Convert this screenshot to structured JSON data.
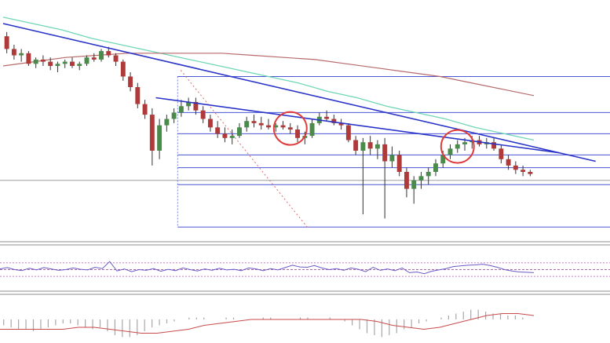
{
  "colors": {
    "background": "#ffffff",
    "bull_body": "#4a8a4a",
    "bear_body": "#b03a3a",
    "wick": "#333333",
    "trendline": "#2a35c8",
    "fib_line": "#4a56d6",
    "fib_anchor": "#5560d8",
    "ma_fast": "#6fd6b8",
    "ma_slow": "#b86a6a",
    "horizontal_level": "#8c8c8c",
    "projection": "#e06a6a",
    "highlight_circle": "#e03a3a",
    "panel_separator": "#8c8c8c",
    "rsi_line": "#6a5ac8",
    "rsi_band": "#b050b0",
    "rsi_mid": "#8a3a8a",
    "macd_hist": "#a8a8a8",
    "macd_signal": "#c84a4a"
  },
  "chart_data": [
    {
      "type": "candlestick",
      "panel": "price",
      "title": "",
      "xlabel": "",
      "ylabel": "",
      "y_range": [
        0,
        100
      ],
      "grid": false,
      "candles": [
        [
          94,
          96,
          86,
          88
        ],
        [
          88,
          90,
          83,
          85
        ],
        [
          85,
          88,
          82,
          86
        ],
        [
          86,
          87,
          80,
          81
        ],
        [
          81,
          84,
          79,
          83
        ],
        [
          83,
          85,
          80,
          82
        ],
        [
          82,
          84,
          78,
          80
        ],
        [
          80,
          82,
          77,
          81
        ],
        [
          81,
          83,
          79,
          82
        ],
        [
          82,
          84,
          79,
          80
        ],
        [
          80,
          82,
          78,
          81
        ],
        [
          81,
          85,
          80,
          84
        ],
        [
          84,
          86,
          82,
          83
        ],
        [
          83,
          88,
          82,
          87
        ],
        [
          87,
          89,
          84,
          85
        ],
        [
          85,
          86,
          80,
          82
        ],
        [
          82,
          83,
          73,
          75
        ],
        [
          75,
          77,
          68,
          70
        ],
        [
          70,
          72,
          60,
          62
        ],
        [
          62,
          64,
          55,
          57
        ],
        [
          57,
          60,
          33,
          40
        ],
        [
          40,
          55,
          36,
          52
        ],
        [
          52,
          57,
          49,
          55
        ],
        [
          55,
          60,
          53,
          58
        ],
        [
          58,
          64,
          56,
          61
        ],
        [
          61,
          65,
          59,
          63
        ],
        [
          63,
          65,
          57,
          59
        ],
        [
          59,
          61,
          53,
          55
        ],
        [
          55,
          57,
          49,
          51
        ],
        [
          51,
          54,
          46,
          48
        ],
        [
          48,
          51,
          44,
          46
        ],
        [
          46,
          50,
          43,
          47
        ],
        [
          47,
          53,
          46,
          51
        ],
        [
          51,
          56,
          49,
          54
        ],
        [
          54,
          57,
          51,
          53
        ],
        [
          53,
          56,
          50,
          52
        ],
        [
          52,
          55,
          50,
          51
        ],
        [
          51,
          53,
          49,
          52
        ],
        [
          52,
          54,
          50,
          51
        ],
        [
          51,
          53,
          48,
          50
        ],
        [
          50,
          52,
          44,
          46
        ],
        [
          46,
          49,
          43,
          47
        ],
        [
          47,
          55,
          46,
          53
        ],
        [
          53,
          58,
          52,
          56
        ],
        [
          56,
          59,
          54,
          55
        ],
        [
          55,
          57,
          52,
          53
        ],
        [
          53,
          55,
          50,
          52
        ],
        [
          52,
          53,
          44,
          45
        ],
        [
          45,
          47,
          38,
          40
        ],
        [
          40,
          46,
          10,
          44
        ],
        [
          44,
          47,
          38,
          41
        ],
        [
          41,
          45,
          36,
          43
        ],
        [
          43,
          46,
          8,
          35
        ],
        [
          35,
          42,
          32,
          38
        ],
        [
          38,
          40,
          28,
          30
        ],
        [
          30,
          32,
          18,
          22
        ],
        [
          22,
          28,
          15,
          26
        ],
        [
          26,
          30,
          22,
          28
        ],
        [
          28,
          32,
          24,
          30
        ],
        [
          30,
          36,
          28,
          34
        ],
        [
          34,
          40,
          32,
          38
        ],
        [
          38,
          43,
          36,
          41
        ],
        [
          41,
          45,
          39,
          43
        ],
        [
          43,
          46,
          40,
          44
        ],
        [
          44,
          47,
          41,
          45
        ],
        [
          45,
          47,
          42,
          43
        ],
        [
          43,
          46,
          41,
          44
        ],
        [
          44,
          46,
          40,
          41
        ],
        [
          41,
          43,
          34,
          36
        ],
        [
          36,
          38,
          31,
          33
        ],
        [
          33,
          35,
          29,
          31
        ],
        [
          31,
          33,
          28,
          30
        ],
        [
          30,
          31,
          28,
          29
        ]
      ],
      "ma_fast": [
        103,
        100,
        97,
        93,
        90,
        87,
        84,
        81,
        78,
        75,
        72,
        68,
        65,
        61,
        58,
        55,
        51,
        48,
        45
      ],
      "ma_slow": [
        80,
        82,
        84,
        85,
        86,
        86,
        86,
        86,
        85,
        84,
        83,
        81,
        79,
        77,
        75,
        72,
        69,
        66
      ],
      "trendlines": [
        {
          "from": [
            0,
            100
          ],
          "to": [
            81,
            35
          ]
        },
        {
          "from": [
            21,
            65
          ],
          "to": [
            76,
            39
          ]
        }
      ],
      "fib_levels": [
        75,
        58,
        48,
        38,
        32,
        24,
        4
      ],
      "fib_start_index": 24,
      "horizontal_level": 26,
      "highlight_candles": [
        39,
        62
      ]
    },
    {
      "type": "line",
      "panel": "rsi",
      "y_range": [
        0,
        100
      ],
      "bands": [
        70,
        50,
        30
      ],
      "values": [
        52,
        56,
        50,
        47,
        54,
        49,
        56,
        52,
        48,
        50,
        55,
        51,
        49,
        57,
        53,
        74,
        46,
        52,
        44,
        50,
        48,
        53,
        45,
        51,
        47,
        55,
        50,
        46,
        52,
        48,
        54,
        49,
        51,
        47,
        55,
        52,
        47,
        53,
        49,
        56,
        63,
        58,
        57,
        62,
        55,
        50,
        53,
        48,
        55,
        51,
        44,
        57,
        48,
        52,
        47,
        55,
        41,
        43,
        38,
        45,
        49,
        53,
        59,
        61,
        63,
        64,
        66,
        62,
        57,
        50,
        46,
        43,
        42,
        41
      ]
    },
    {
      "type": "bar",
      "panel": "macd",
      "y_range": [
        -10,
        10
      ],
      "zero_line": 0,
      "histogram": [
        -3,
        -4,
        -5,
        -5,
        -6,
        -5,
        -4,
        -3,
        -2,
        -2,
        -3,
        -4,
        -5,
        -4,
        -6,
        -8,
        -9,
        -9,
        -8,
        -6,
        -4,
        -3,
        -2,
        -1,
        0,
        1,
        1,
        1,
        0,
        0,
        1,
        1,
        0,
        0,
        0,
        1,
        1,
        0,
        0,
        0,
        1,
        1,
        0,
        0,
        1,
        0,
        -1,
        -3,
        -5,
        -7,
        -8,
        -9,
        -8,
        -7,
        -5,
        -4,
        -2,
        -1,
        0,
        1,
        2,
        3,
        4,
        5,
        5,
        4,
        3,
        3,
        2,
        2,
        1,
        0
      ],
      "signal": [
        -5,
        -5,
        -5,
        -5,
        -5,
        -4,
        -4,
        -5,
        -6,
        -7,
        -7,
        -6,
        -5,
        -3,
        -2,
        -1,
        0,
        0,
        0,
        0,
        0,
        0,
        0,
        0,
        -1,
        -3,
        -4,
        -5,
        -4,
        -2,
        0,
        2,
        3,
        3,
        2
      ]
    }
  ]
}
